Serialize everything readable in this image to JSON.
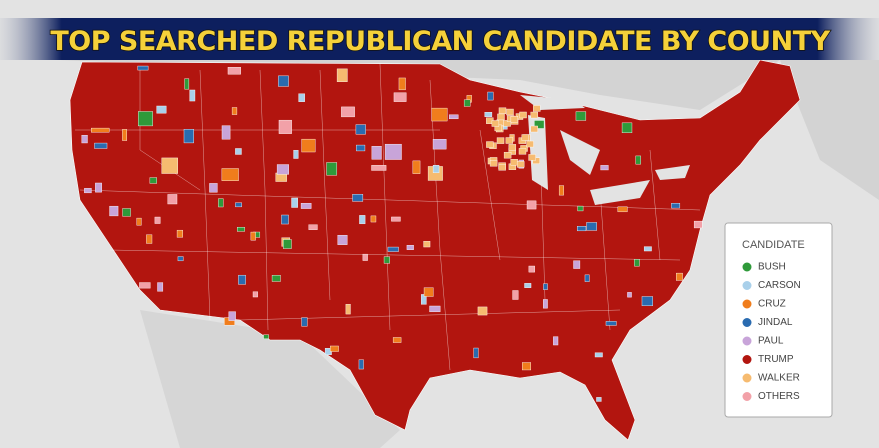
{
  "title": "TOP SEARCHED REPUBLICAN CANDIDATE BY COUNTY",
  "legend": {
    "title": "CANDIDATE",
    "items": [
      {
        "name": "BUSH",
        "color": "#2f9a3a"
      },
      {
        "name": "CARSON",
        "color": "#a9d0ea"
      },
      {
        "name": "CRUZ",
        "color": "#f07d1c"
      },
      {
        "name": "JINDAL",
        "color": "#2a6bb0"
      },
      {
        "name": "PAUL",
        "color": "#c8a4d9"
      },
      {
        "name": "TRUMP",
        "color": "#b2150f"
      },
      {
        "name": "WALKER",
        "color": "#f6bb70"
      },
      {
        "name": "OTHERS",
        "color": "#f2a1a8"
      }
    ]
  }
}
